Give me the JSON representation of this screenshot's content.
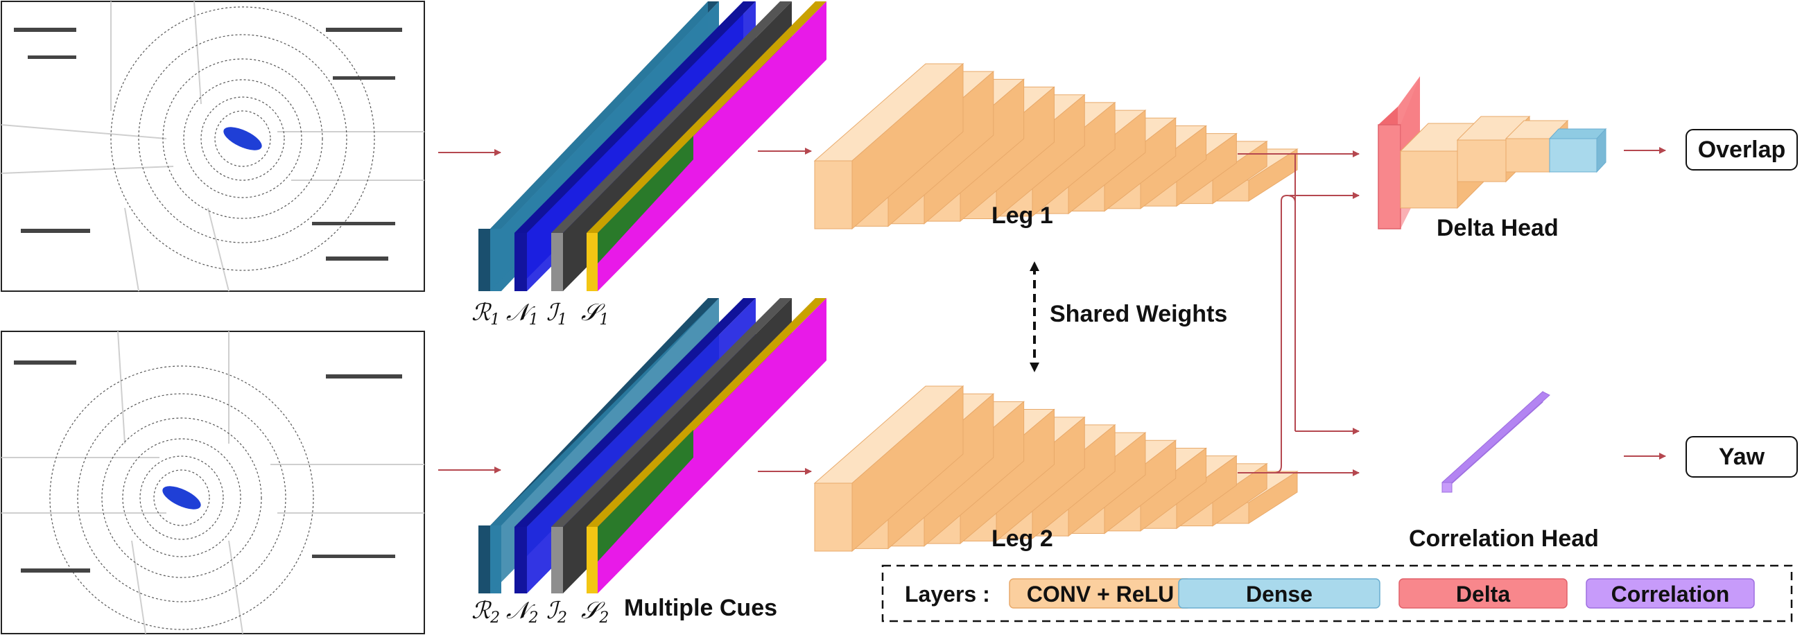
{
  "labels": {
    "leg1": "Leg 1",
    "leg2": "Leg 2",
    "shared_weights": "Shared Weights",
    "delta_head": "Delta Head",
    "correlation_head": "Correlation Head",
    "multiple_cues": "Multiple Cues",
    "overlap": "Overlap",
    "yaw": "Yaw"
  },
  "cues_top": [
    {
      "sym": "ℛ",
      "sub": "1"
    },
    {
      "sym": "𝒩",
      "sub": "1"
    },
    {
      "sym": "ℐ",
      "sub": "1"
    },
    {
      "sym": "𝒮",
      "sub": "1"
    }
  ],
  "cues_bottom": [
    {
      "sym": "ℛ",
      "sub": "2"
    },
    {
      "sym": "𝒩",
      "sub": "2"
    },
    {
      "sym": "ℐ",
      "sub": "2"
    },
    {
      "sym": "𝒮",
      "sub": "2"
    }
  ],
  "legend": {
    "title": "Layers :",
    "items": [
      {
        "label": "CONV + ReLU",
        "color": "#fbcf9e"
      },
      {
        "label": "Dense",
        "color": "#a9d9ec"
      },
      {
        "label": "Delta",
        "color": "#f8878c"
      },
      {
        "label": "Correlation",
        "color": "#c79bfa"
      }
    ]
  },
  "colors": {
    "conv": "#fbcf9e",
    "dense": "#a9d9ec",
    "delta": "#f8878c",
    "correlation": "#c79bfa",
    "arrow": "#b5474f",
    "range_image": "#2d7fa6",
    "normal_image": "#1c1fe0",
    "intensity_image": "#8e8e8e",
    "semantic_image": "#f3c614",
    "semantic_magenta": "#e81ae8",
    "car": "#1f3fd6"
  }
}
